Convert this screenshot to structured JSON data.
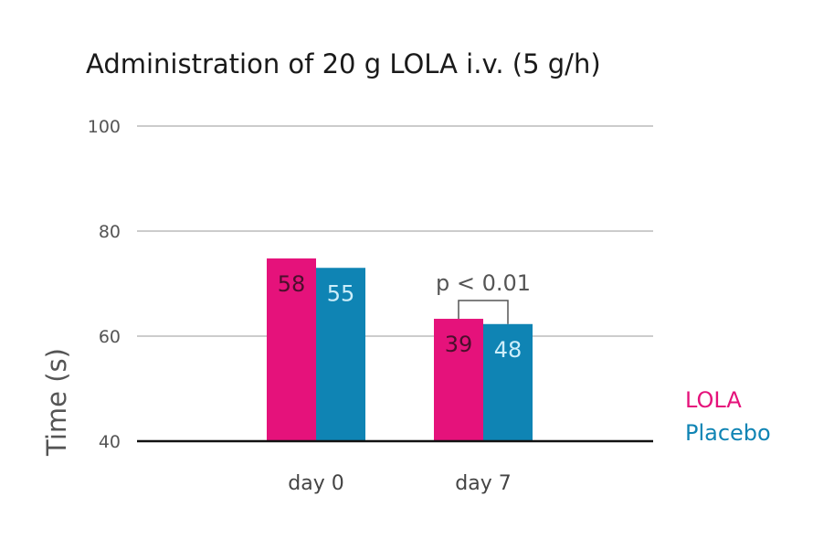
{
  "chart_data": {
    "type": "bar",
    "title": "Administration of 20 g LOLA i.v. (5 g/h)",
    "xlabel": "",
    "ylabel": "Time (s)",
    "ylim": [
      40,
      100
    ],
    "yticks": [
      "40",
      "60",
      "80",
      "100"
    ],
    "grid": true,
    "categories": [
      "day 0",
      "day 7"
    ],
    "series": [
      {
        "name": "LOLA",
        "color": "#e5127b",
        "label_color": "#4a0f2c",
        "values": [
          74.8,
          63.3
        ],
        "bar_labels": [
          "58",
          "39"
        ]
      },
      {
        "name": "Placebo",
        "color": "#0f84b4",
        "label_color": "#cdeefa",
        "values": [
          73.0,
          62.3
        ],
        "bar_labels": [
          "55",
          "48"
        ]
      }
    ],
    "legend_position": "right",
    "annotations": [
      {
        "text": "p < 0.01",
        "category": "day 7"
      }
    ]
  }
}
